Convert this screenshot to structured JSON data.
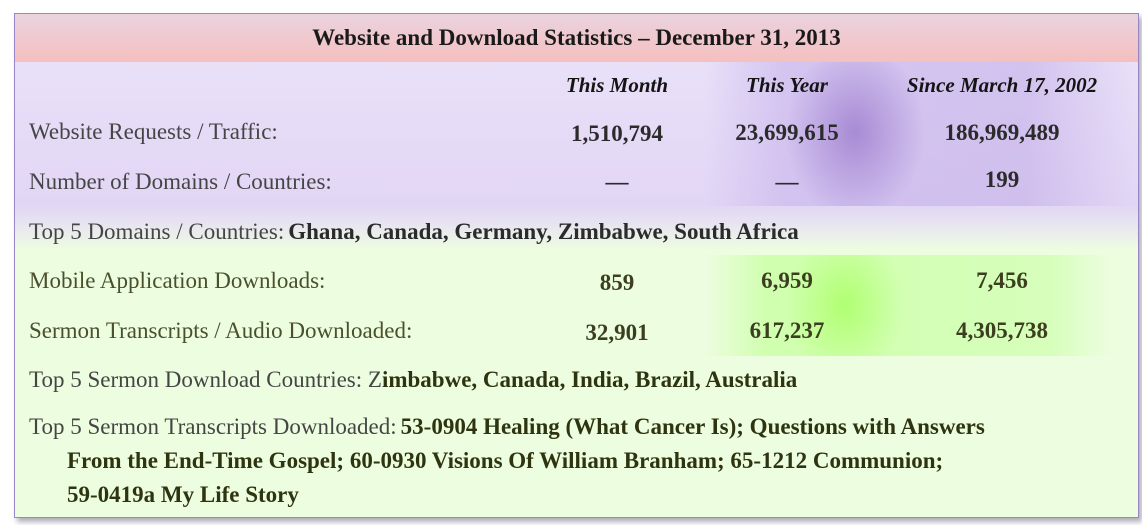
{
  "title": "Website and Download Statistics – December 31, 2013",
  "columns": [
    "This Month",
    "This Year",
    "Since March 17, 2002"
  ],
  "rows": [
    {
      "label": "Website Requests / Traffic:",
      "values": [
        "1,510,794",
        "23,699,615",
        "186,969,489"
      ]
    },
    {
      "label": "Number of Domains / Countries:",
      "values": [
        "—",
        "—",
        "199"
      ]
    },
    {
      "label": "Mobile Application Downloads:",
      "values": [
        "859",
        "6,959",
        "7,456"
      ]
    },
    {
      "label": "Sermon Transcripts / Audio Downloaded:",
      "values": [
        "32,901",
        "617,237",
        "4,305,738"
      ]
    }
  ],
  "top_domains": {
    "label": "Top 5 Domains / Countries:",
    "value": "Ghana, Canada, Germany, Zimbabwe, South Africa"
  },
  "top_sermon_countries": {
    "label": "Top 5 Sermon Download Countries: Z",
    "value": "imbabwe, Canada, India, Brazil, Australia"
  },
  "top_sermon_transcripts": {
    "label": "Top 5 Sermon Transcripts Downloaded:",
    "line1": "53-0904 Healing (What Cancer Is); Questions with Answers",
    "line2": "From the End-Time Gospel; 60-0930 Visions Of William Branham; 65-1212 Communion;",
    "line3": "59-0419a My Life Story"
  },
  "colors": {
    "title_band": "#f5bfbf",
    "purple_band": "#e2d6f5",
    "green_band": "#edfde0",
    "border": "#9a86c4"
  }
}
